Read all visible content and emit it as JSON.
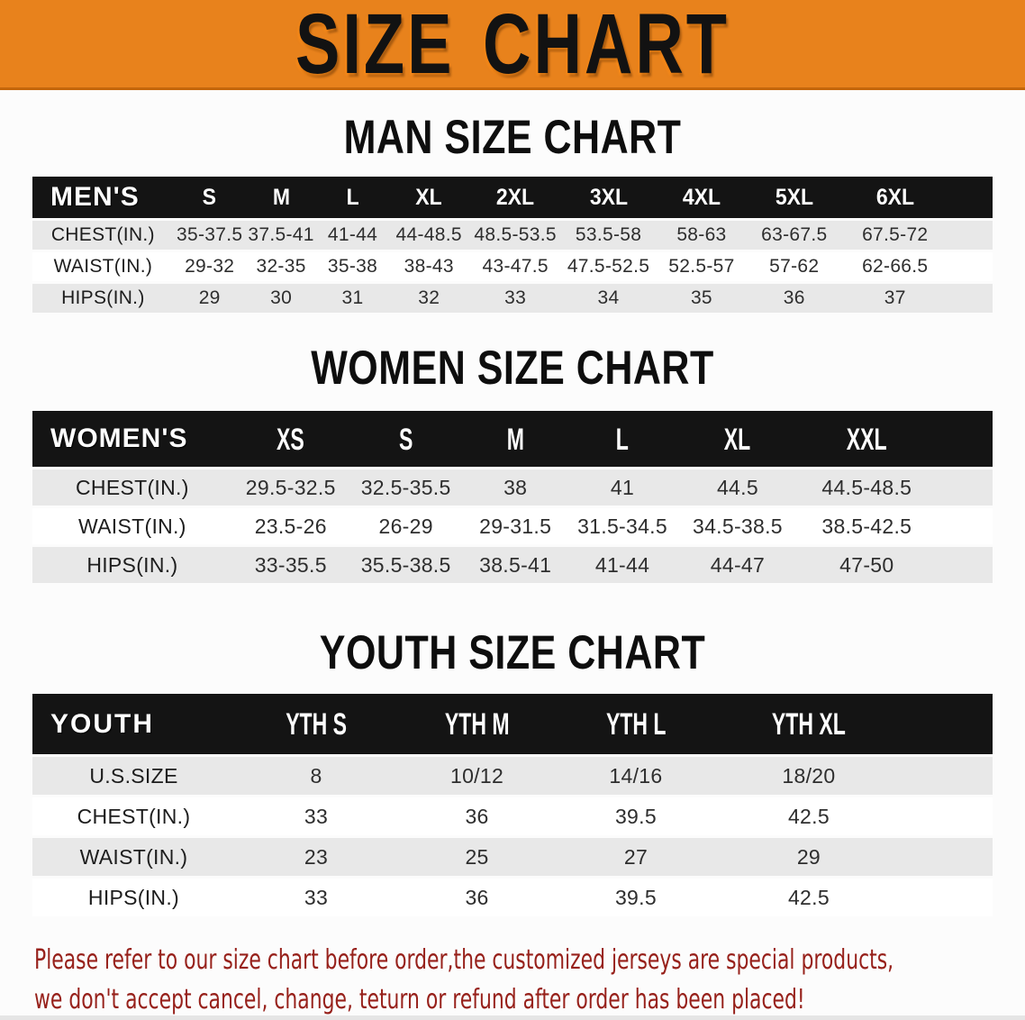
{
  "banner": {
    "title": "SIZE CHART",
    "background_color": "#E8821C"
  },
  "tables": [
    {
      "id": "mens",
      "heading": "MAN SIZE CHART",
      "columns": [
        "MEN'S",
        "S",
        "M",
        "L",
        "XL",
        "2XL",
        "3XL",
        "4XL",
        "5XL",
        "6XL"
      ],
      "rows": [
        [
          "CHEST(IN.)",
          "35-37.5",
          "37.5-41",
          "41-44",
          "44-48.5",
          "48.5-53.5",
          "53.5-58",
          "58-63",
          "63-67.5",
          "67.5-72"
        ],
        [
          "WAIST(IN.)",
          "29-32",
          "32-35",
          "35-38",
          "38-43",
          "43-47.5",
          "47.5-52.5",
          "52.5-57",
          "57-62",
          "62-66.5"
        ],
        [
          "HIPS(IN.)",
          "29",
          "30",
          "31",
          "32",
          "33",
          "34",
          "35",
          "36",
          "37"
        ]
      ]
    },
    {
      "id": "womens",
      "heading": "WOMEN SIZE CHART",
      "columns": [
        "WOMEN'S",
        "XS",
        "S",
        "M",
        "L",
        "XL",
        "XXL"
      ],
      "rows": [
        [
          "CHEST(IN.)",
          "29.5-32.5",
          "32.5-35.5",
          "38",
          "41",
          "44.5",
          "44.5-48.5"
        ],
        [
          "WAIST(IN.)",
          "23.5-26",
          "26-29",
          "29-31.5",
          "31.5-34.5",
          "34.5-38.5",
          "38.5-42.5"
        ],
        [
          "HIPS(IN.)",
          "33-35.5",
          "35.5-38.5",
          "38.5-41",
          "41-44",
          "44-47",
          "47-50"
        ]
      ]
    },
    {
      "id": "youth",
      "heading": "YOUTH SIZE CHART",
      "columns": [
        "YOUTH",
        "YTH S",
        "YTH M",
        "YTH L",
        "YTH XL"
      ],
      "rows": [
        [
          "U.S.SIZE",
          "8",
          "10/12",
          "14/16",
          "18/20"
        ],
        [
          "CHEST(IN.)",
          "33",
          "36",
          "39.5",
          "42.5"
        ],
        [
          "WAIST(IN.)",
          "23",
          "25",
          "27",
          "29"
        ],
        [
          "HIPS(IN.)",
          "33",
          "36",
          "39.5",
          "42.5"
        ]
      ]
    }
  ],
  "disclaimer": {
    "line1": "Please refer to our size chart before order,the customized jerseys are special products,",
    "line2": "we don't accept cancel, change, teturn or refund after order has been placed!",
    "color": "#97211B"
  },
  "colors": {
    "banner_orange": "#E8821C",
    "table_header_black": "#141414",
    "row_stripe_gray": "#E8E8E8",
    "note_red": "#97211B"
  }
}
